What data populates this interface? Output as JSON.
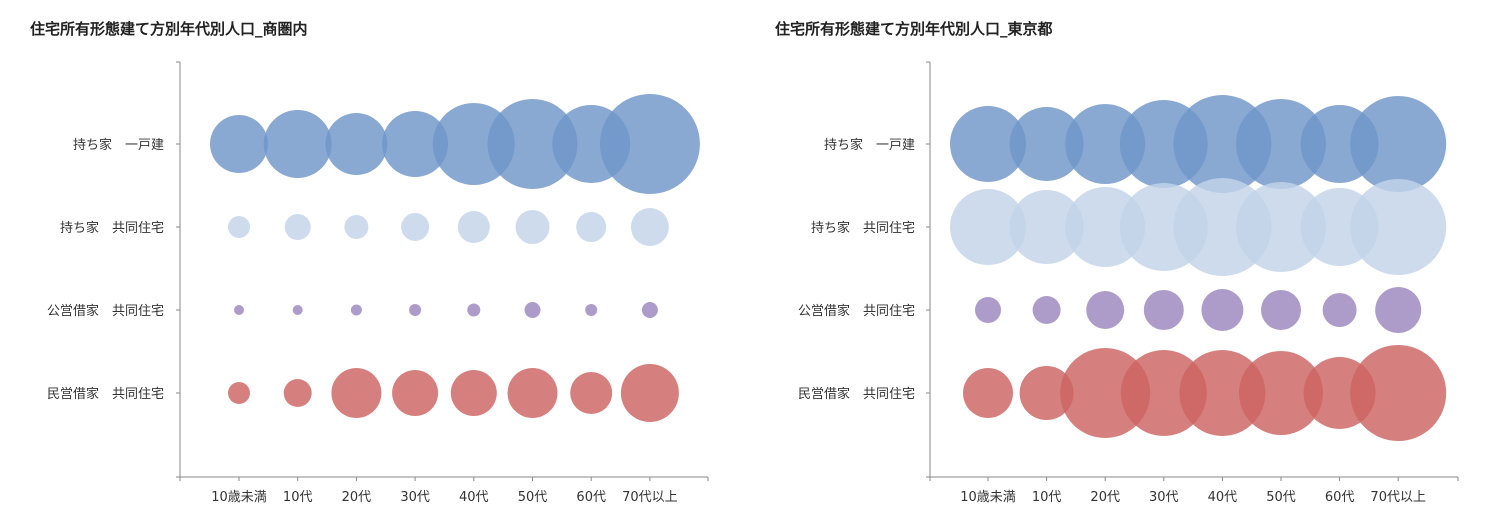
{
  "chart_data": [
    {
      "type": "bubble",
      "title": "住宅所有形態建て方別年代別人口_商圏内",
      "categories": [
        "10歳未満",
        "10代",
        "20代",
        "30代",
        "40代",
        "50代",
        "60代",
        "70代以上"
      ],
      "rows": [
        "持ち家　一戸建",
        "持ち家　共同住宅",
        "公営借家　共同住宅",
        "民営借家　共同住宅"
      ],
      "row_colors": [
        "#6f96c9",
        "#c2d3e9",
        "#9b86bd",
        "#cc6461"
      ],
      "values": [
        [
          29,
          34,
          31,
          33,
          41,
          45,
          39,
          50
        ],
        [
          11,
          13,
          12,
          14,
          16,
          17,
          15,
          19
        ],
        [
          5,
          5,
          5.5,
          6,
          6.5,
          8,
          6,
          8
        ],
        [
          11,
          14,
          25,
          23,
          23,
          25,
          21,
          29
        ]
      ]
    },
    {
      "type": "bubble",
      "title": "住宅所有形態建て方別年代別人口_東京都",
      "categories": [
        "10歳未満",
        "10代",
        "20代",
        "30代",
        "40代",
        "50代",
        "60代",
        "70代以上"
      ],
      "rows": [
        "持ち家　一戸建",
        "持ち家　共同住宅",
        "公営借家　共同住宅",
        "民営借家　共同住宅"
      ],
      "row_colors": [
        "#6f96c9",
        "#c2d3e9",
        "#9b86bd",
        "#cc6461"
      ],
      "values": [
        [
          38,
          37,
          40,
          44,
          49,
          45,
          39,
          48
        ],
        [
          38,
          37,
          40,
          44,
          49,
          45,
          39,
          48
        ],
        [
          13,
          14,
          19,
          20,
          21,
          20,
          17,
          23
        ],
        [
          25,
          27,
          45,
          43,
          43,
          42,
          36,
          48
        ]
      ]
    }
  ]
}
